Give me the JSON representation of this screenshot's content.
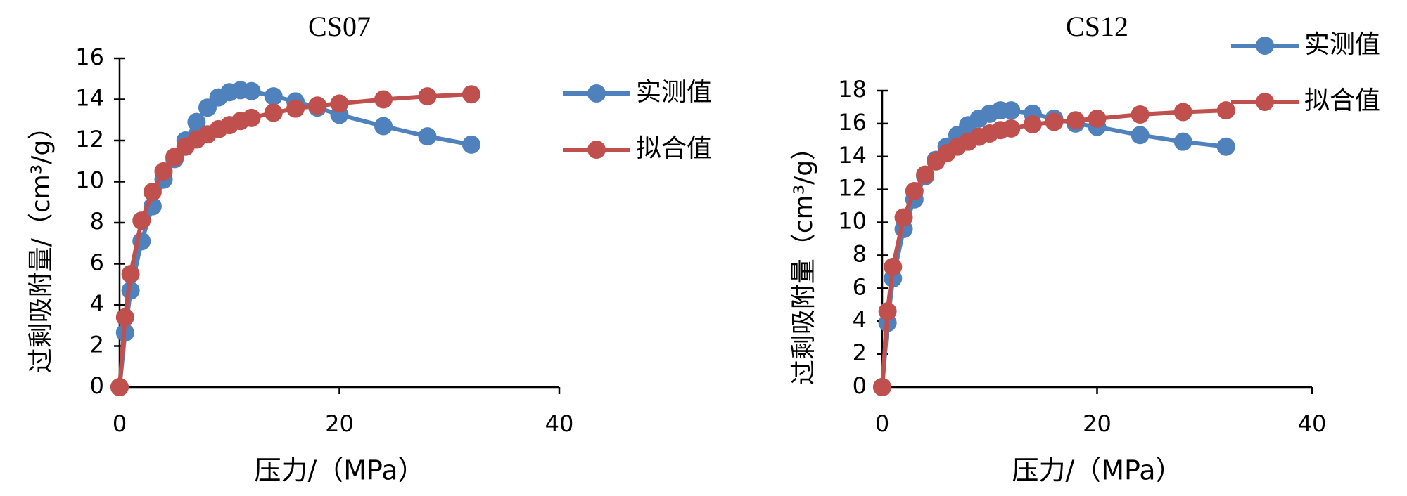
{
  "chart_data": [
    {
      "type": "line",
      "title": "CS07",
      "x_label": "压力/（MPa）",
      "y_label": "过剩吸附量/（cm³/g）",
      "xlim": [
        0,
        40
      ],
      "xticks": [
        0,
        20,
        40
      ],
      "ylim": [
        0,
        16
      ],
      "yticks": [
        0,
        2,
        4,
        6,
        8,
        10,
        12,
        14,
        16
      ],
      "grid": false,
      "legend": "right",
      "x": [
        0,
        0.5,
        1,
        2,
        3,
        4,
        5,
        6,
        7,
        8,
        9,
        10,
        11,
        12,
        14,
        16,
        18,
        20,
        24,
        28,
        32
      ],
      "series": [
        {
          "name": "实测值",
          "color": "#4f81bd",
          "values": [
            0,
            2.65,
            4.7,
            7.1,
            8.8,
            10.1,
            11.1,
            12.0,
            12.9,
            13.6,
            14.1,
            14.35,
            14.45,
            14.4,
            14.15,
            13.9,
            13.6,
            13.25,
            12.7,
            12.2,
            11.8
          ]
        },
        {
          "name": "拟合值",
          "color": "#c0504d",
          "values": [
            0,
            3.4,
            5.5,
            8.1,
            9.5,
            10.5,
            11.2,
            11.7,
            12.05,
            12.3,
            12.55,
            12.75,
            12.95,
            13.1,
            13.35,
            13.55,
            13.7,
            13.8,
            14.0,
            14.15,
            14.25
          ]
        }
      ]
    },
    {
      "type": "line",
      "title": "CS12",
      "x_label": "压力/（MPa）",
      "y_label": "过剩吸附量（cm³/g）",
      "xlim": [
        0,
        40
      ],
      "xticks": [
        0,
        20,
        40
      ],
      "ylim": [
        0,
        18
      ],
      "yticks": [
        0,
        2,
        4,
        6,
        8,
        10,
        12,
        14,
        16,
        18
      ],
      "grid": false,
      "legend": "top-right",
      "x": [
        0,
        0.5,
        1,
        2,
        3,
        4,
        5,
        6,
        7,
        8,
        9,
        10,
        11,
        12,
        14,
        16,
        18,
        20,
        24,
        28,
        32
      ],
      "series": [
        {
          "name": "实测值",
          "color": "#4f81bd",
          "values": [
            0,
            3.9,
            6.6,
            9.6,
            11.4,
            12.8,
            13.8,
            14.6,
            15.3,
            15.9,
            16.3,
            16.6,
            16.8,
            16.8,
            16.6,
            16.3,
            16.0,
            15.8,
            15.3,
            14.9,
            14.6
          ]
        },
        {
          "name": "拟合值",
          "color": "#c0504d",
          "values": [
            0,
            4.6,
            7.3,
            10.3,
            11.9,
            12.9,
            13.7,
            14.2,
            14.6,
            14.9,
            15.2,
            15.4,
            15.6,
            15.7,
            15.95,
            16.1,
            16.2,
            16.3,
            16.55,
            16.7,
            16.8
          ]
        }
      ]
    }
  ]
}
